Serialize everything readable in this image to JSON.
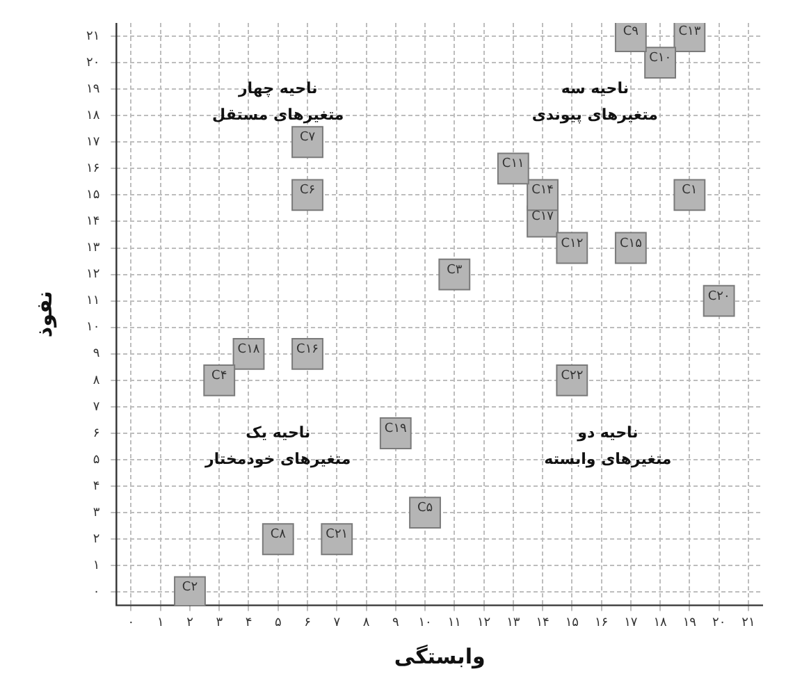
{
  "chart_data": {
    "type": "scatter",
    "xlabel": "وابستگی",
    "ylabel": "نفوذ",
    "marker": "square",
    "grid": true,
    "legend": false,
    "xlim": [
      -0.5,
      21.5
    ],
    "ylim": [
      -0.5,
      21.5
    ],
    "xticks": [
      {
        "value": 0,
        "label": "۰"
      },
      {
        "value": 1,
        "label": "۱"
      },
      {
        "value": 2,
        "label": "۲"
      },
      {
        "value": 3,
        "label": "۳"
      },
      {
        "value": 4,
        "label": "۴"
      },
      {
        "value": 5,
        "label": "۵"
      },
      {
        "value": 6,
        "label": "۶"
      },
      {
        "value": 7,
        "label": "۷"
      },
      {
        "value": 8,
        "label": "۸"
      },
      {
        "value": 9,
        "label": "۹"
      },
      {
        "value": 10,
        "label": "۱۰"
      },
      {
        "value": 11,
        "label": "۱۱"
      },
      {
        "value": 12,
        "label": "۱۲"
      },
      {
        "value": 13,
        "label": "۱۳"
      },
      {
        "value": 14,
        "label": "۱۴"
      },
      {
        "value": 15,
        "label": "۱۵"
      },
      {
        "value": 16,
        "label": "۱۶"
      },
      {
        "value": 17,
        "label": "۱۷"
      },
      {
        "value": 18,
        "label": "۱۸"
      },
      {
        "value": 19,
        "label": "۱۹"
      },
      {
        "value": 20,
        "label": "۲۰"
      },
      {
        "value": 21,
        "label": "۲۱"
      }
    ],
    "yticks": [
      {
        "value": 0,
        "label": "۰"
      },
      {
        "value": 1,
        "label": "۱"
      },
      {
        "value": 2,
        "label": "۲"
      },
      {
        "value": 3,
        "label": "۳"
      },
      {
        "value": 4,
        "label": "۴"
      },
      {
        "value": 5,
        "label": "۵"
      },
      {
        "value": 6,
        "label": "۶"
      },
      {
        "value": 7,
        "label": "۷"
      },
      {
        "value": 8,
        "label": "۸"
      },
      {
        "value": 9,
        "label": "۹"
      },
      {
        "value": 10,
        "label": "۱۰"
      },
      {
        "value": 11,
        "label": "۱۱"
      },
      {
        "value": 12,
        "label": "۱۲"
      },
      {
        "value": 13,
        "label": "۱۳"
      },
      {
        "value": 14,
        "label": "۱۴"
      },
      {
        "value": 15,
        "label": "۱۵"
      },
      {
        "value": 16,
        "label": "۱۶"
      },
      {
        "value": 17,
        "label": "۱۷"
      },
      {
        "value": 18,
        "label": "۱۸"
      },
      {
        "value": 19,
        "label": "۱۹"
      },
      {
        "value": 20,
        "label": "۲۰"
      },
      {
        "value": 21,
        "label": "۲۱"
      }
    ],
    "annotations": [
      "ناحیه چهار\nمتغیرهای مستقل",
      "ناحیه سه\nمتغیرهای پیوندی",
      "ناحیه یک\nمتغیرهای خودمختار",
      "ناحیه دو\nمتغیرهای وابسته"
    ],
    "series": [
      {
        "name": "C۱",
        "color": "#b5b5b5",
        "x": [
          19
        ],
        "values": [
          15
        ]
      },
      {
        "name": "C۲",
        "color": "#b5b5b5",
        "x": [
          2
        ],
        "values": [
          0
        ]
      },
      {
        "name": "C۳",
        "color": "#b5b5b5",
        "x": [
          11
        ],
        "values": [
          12
        ]
      },
      {
        "name": "C۴",
        "color": "#b5b5b5",
        "x": [
          3
        ],
        "values": [
          8
        ]
      },
      {
        "name": "C۵",
        "color": "#b5b5b5",
        "x": [
          10
        ],
        "values": [
          3
        ]
      },
      {
        "name": "C۶",
        "color": "#b5b5b5",
        "x": [
          6
        ],
        "values": [
          15
        ]
      },
      {
        "name": "C۷",
        "color": "#b5b5b5",
        "x": [
          6
        ],
        "values": [
          17
        ]
      },
      {
        "name": "C۸",
        "color": "#b5b5b5",
        "x": [
          5
        ],
        "values": [
          2
        ]
      },
      {
        "name": "C۹",
        "color": "#b5b5b5",
        "x": [
          17
        ],
        "values": [
          21
        ]
      },
      {
        "name": "C۱۰",
        "color": "#b5b5b5",
        "x": [
          18
        ],
        "values": [
          20
        ]
      },
      {
        "name": "C۱۱",
        "color": "#b5b5b5",
        "x": [
          13
        ],
        "values": [
          16
        ]
      },
      {
        "name": "C۱۲",
        "color": "#b5b5b5",
        "x": [
          15
        ],
        "values": [
          13
        ]
      },
      {
        "name": "C۱۳",
        "color": "#b5b5b5",
        "x": [
          19
        ],
        "values": [
          21
        ]
      },
      {
        "name": "C۱۴",
        "color": "#b5b5b5",
        "x": [
          14
        ],
        "values": [
          15
        ]
      },
      {
        "name": "C۱۵",
        "color": "#b5b5b5",
        "x": [
          17
        ],
        "values": [
          13
        ]
      },
      {
        "name": "C۱۶",
        "color": "#b5b5b5",
        "x": [
          6
        ],
        "values": [
          9
        ]
      },
      {
        "name": "C۱۷",
        "color": "#b5b5b5",
        "x": [
          14
        ],
        "values": [
          14
        ]
      },
      {
        "name": "C۱۸",
        "color": "#b5b5b5",
        "x": [
          4
        ],
        "values": [
          9
        ]
      },
      {
        "name": "C۱۹",
        "color": "#b5b5b5",
        "x": [
          9
        ],
        "values": [
          6
        ]
      },
      {
        "name": "C۲۰",
        "color": "#b5b5b5",
        "x": [
          20
        ],
        "values": [
          11
        ]
      },
      {
        "name": "C۲۱",
        "color": "#b5b5b5",
        "x": [
          7
        ],
        "values": [
          2
        ]
      },
      {
        "name": "C۲۲",
        "color": "#b5b5b5",
        "x": [
          15
        ],
        "values": [
          8
        ]
      }
    ]
  }
}
